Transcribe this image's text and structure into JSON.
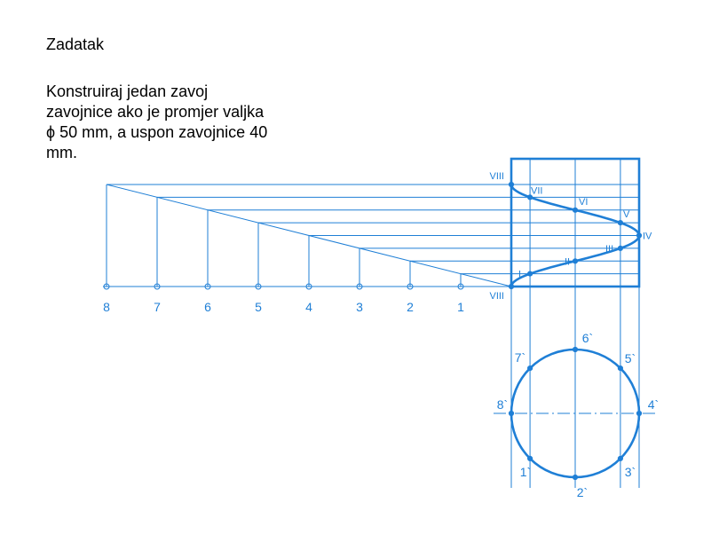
{
  "title": "Zadatak",
  "task_lines": [
    "Konstruiraj jedan zavoj",
    "zavojnice ako je promjer valjka",
    "ϕ 50 mm, a uspon zavojnice 40",
    "mm."
  ],
  "colors": {
    "line": "#1f7fd6",
    "text": "#000000",
    "background": "#ffffff"
  },
  "unrolling_labels": [
    "8",
    "7",
    "6",
    "5",
    "4",
    "3",
    "2",
    "1"
  ],
  "elevation_labels": [
    "VIII",
    "VII",
    "VI",
    "V",
    "IV",
    "III",
    "II",
    "I",
    "VIII"
  ],
  "plan_labels": [
    "1`",
    "2`",
    "3`",
    "4`",
    "5`",
    "6`",
    "7`",
    "8`"
  ]
}
